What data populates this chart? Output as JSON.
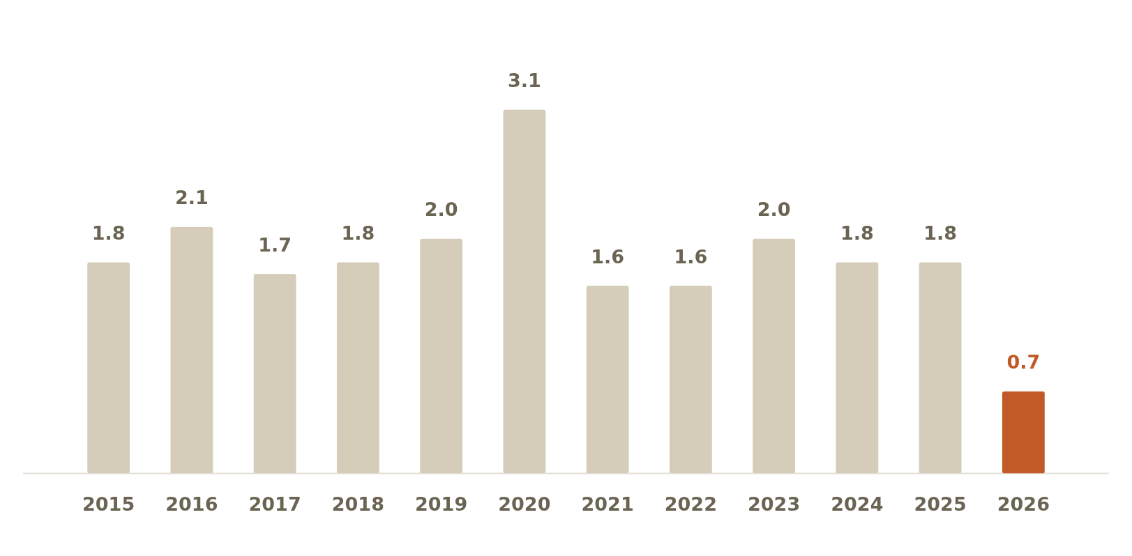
{
  "chart_data": {
    "type": "bar",
    "categories": [
      "2015",
      "2016",
      "2017",
      "2018",
      "2019",
      "2020",
      "2021",
      "2022",
      "2023",
      "2024",
      "2025",
      "2026"
    ],
    "values": [
      1.8,
      2.1,
      1.7,
      1.8,
      2.0,
      3.1,
      1.6,
      1.6,
      2.0,
      1.8,
      1.8,
      0.7
    ],
    "colors": [
      "#d5cdb9",
      "#d5cdb9",
      "#d5cdb9",
      "#d5cdb9",
      "#d5cdb9",
      "#d5cdb9",
      "#d5cdb9",
      "#d5cdb9",
      "#d5cdb9",
      "#d5cdb9",
      "#d5cdb9",
      "#c15a28"
    ],
    "value_labels": [
      "1.8",
      "2.1",
      "1.7",
      "1.8",
      "2.0",
      "3.1",
      "1.6",
      "1.6",
      "2.0",
      "1.8",
      "1.8",
      "0.7"
    ],
    "tick_labels": "x",
    "grid": false,
    "legend": false
  }
}
